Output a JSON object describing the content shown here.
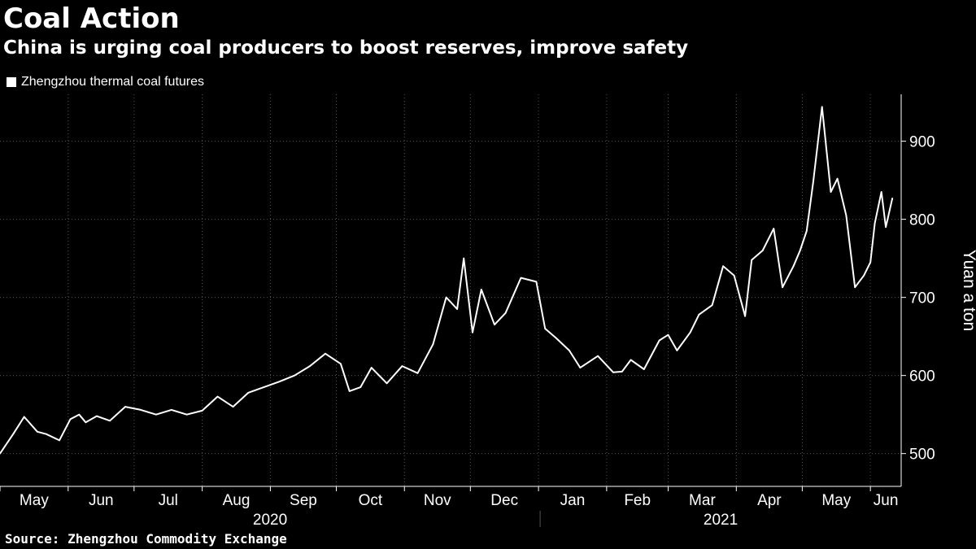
{
  "header": {
    "title": "Coal Action",
    "subtitle": "China is urging coal producers to boost reserves, improve safety"
  },
  "footer": {
    "source": "Source: Zhengzhou Commodity Exchange"
  },
  "chart_data": {
    "type": "line",
    "title": "Coal Action",
    "subtitle": "China is urging coal producers to boost reserves, improve safety",
    "ylabel": "Yuan a ton",
    "xlabel": "",
    "ylim": [
      458,
      960
    ],
    "yticks": [
      500,
      600,
      700,
      800,
      900
    ],
    "grid": true,
    "legend_position": "top-left",
    "colors": {
      "background": "#000000",
      "line": "#ffffff",
      "grid": "#555555",
      "text": "#ffffff"
    },
    "month_labels": [
      "May",
      "Jun",
      "Jul",
      "Aug",
      "Sep",
      "Oct",
      "Nov",
      "Dec",
      "Jan",
      "Feb",
      "Mar",
      "Apr",
      "May",
      "Jun"
    ],
    "year_labels": [
      "2020",
      "2021"
    ],
    "series": [
      {
        "name": "Zhengzhou thermal coal futures",
        "x": [
          "2020-05-01",
          "2020-05-07",
          "2020-05-12",
          "2020-05-18",
          "2020-05-22",
          "2020-05-28",
          "2020-06-02",
          "2020-06-06",
          "2020-06-09",
          "2020-06-14",
          "2020-06-20",
          "2020-06-27",
          "2020-07-04",
          "2020-07-11",
          "2020-07-18",
          "2020-07-25",
          "2020-08-01",
          "2020-08-08",
          "2020-08-15",
          "2020-08-22",
          "2020-08-29",
          "2020-09-05",
          "2020-09-12",
          "2020-09-19",
          "2020-09-26",
          "2020-10-03",
          "2020-10-07",
          "2020-10-12",
          "2020-10-17",
          "2020-10-24",
          "2020-10-31",
          "2020-11-07",
          "2020-11-14",
          "2020-11-20",
          "2020-11-25",
          "2020-11-28",
          "2020-12-02",
          "2020-12-06",
          "2020-12-12",
          "2020-12-17",
          "2020-12-24",
          "2020-12-31",
          "2021-01-04",
          "2021-01-09",
          "2021-01-15",
          "2021-01-20",
          "2021-01-28",
          "2021-02-04",
          "2021-02-08",
          "2021-02-12",
          "2021-02-18",
          "2021-02-25",
          "2021-03-01",
          "2021-03-05",
          "2021-03-11",
          "2021-03-15",
          "2021-03-21",
          "2021-03-26",
          "2021-03-31",
          "2021-04-05",
          "2021-04-08",
          "2021-04-13",
          "2021-04-18",
          "2021-04-22",
          "2021-04-27",
          "2021-04-30",
          "2021-05-03",
          "2021-05-06",
          "2021-05-10",
          "2021-05-14",
          "2021-05-17",
          "2021-05-21",
          "2021-05-25",
          "2021-05-29",
          "2021-06-01",
          "2021-06-03",
          "2021-06-06",
          "2021-06-08",
          "2021-06-11"
        ],
        "values": [
          500,
          525,
          547,
          528,
          525,
          517,
          544,
          550,
          540,
          548,
          542,
          560,
          556,
          550,
          556,
          550,
          555,
          573,
          560,
          578,
          585,
          592,
          600,
          612,
          628,
          615,
          580,
          585,
          610,
          590,
          612,
          603,
          640,
          700,
          685,
          750,
          655,
          710,
          665,
          680,
          725,
          720,
          660,
          648,
          632,
          610,
          625,
          604,
          605,
          620,
          608,
          645,
          652,
          632,
          655,
          678,
          690,
          740,
          728,
          676,
          748,
          760,
          788,
          713,
          740,
          760,
          785,
          848,
          944,
          835,
          852,
          805,
          713,
          728,
          745,
          795,
          835,
          790,
          827
        ]
      }
    ]
  }
}
